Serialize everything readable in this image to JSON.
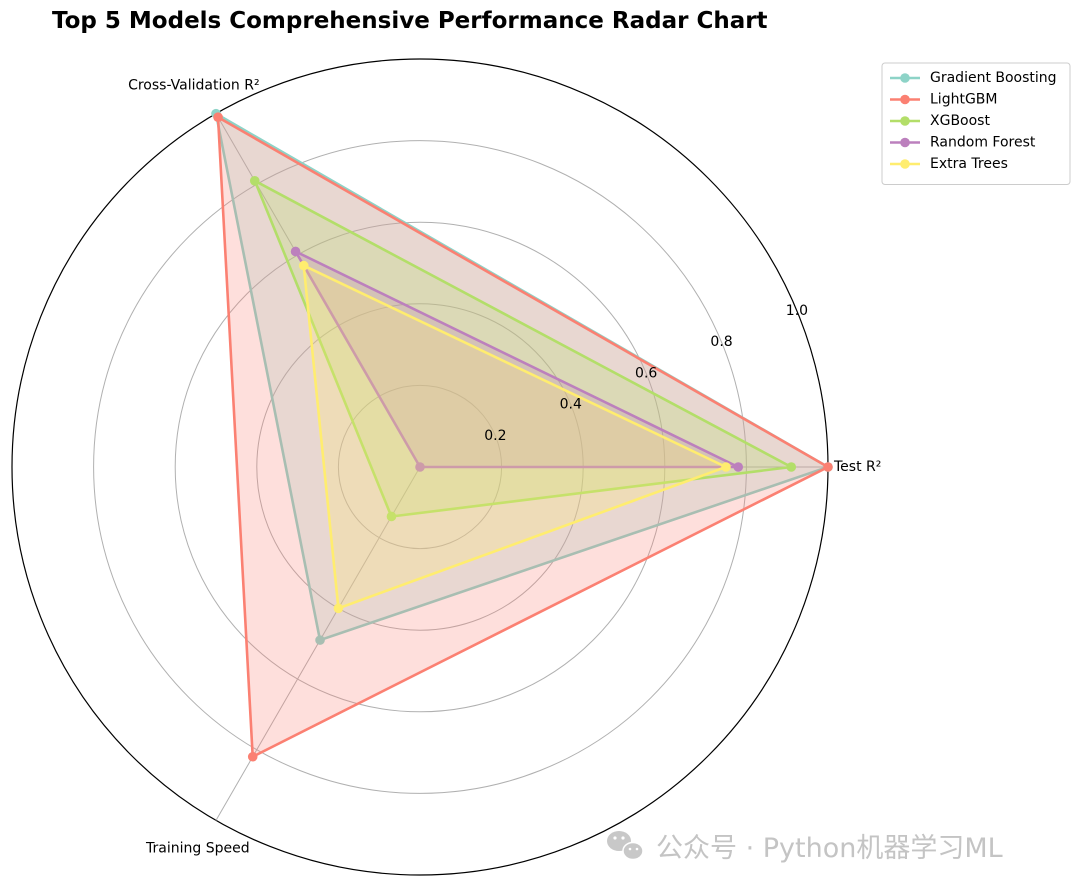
{
  "chart_data": {
    "type": "radar",
    "title": "Top 5 Models Comprehensive Performance Radar Chart",
    "axes": [
      "Test R²",
      "Cross-Validation R²",
      "Training Speed"
    ],
    "radial_range": [
      0,
      1.0
    ],
    "radial_ticks": [
      "0.2",
      "0.4",
      "0.6",
      "0.8",
      "1.0"
    ],
    "grid": true,
    "legend_position": "top-right",
    "series": [
      {
        "name": "Gradient Boosting",
        "color": "#8dd3c7",
        "values": [
          1.0,
          1.0,
          0.49
        ]
      },
      {
        "name": "LightGBM",
        "color": "#fb8072",
        "values": [
          1.0,
          0.99,
          0.82
        ]
      },
      {
        "name": "XGBoost",
        "color": "#b3de69",
        "values": [
          0.91,
          0.81,
          0.14
        ]
      },
      {
        "name": "Random Forest",
        "color": "#bc80bd",
        "values": [
          0.78,
          0.61,
          0.0
        ]
      },
      {
        "name": "Extra Trees",
        "color": "#ffed6f",
        "values": [
          0.75,
          0.57,
          0.4
        ]
      }
    ]
  },
  "watermark": {
    "icon": "wechat-icon",
    "text": "公众号 · Python机器学习ML"
  }
}
